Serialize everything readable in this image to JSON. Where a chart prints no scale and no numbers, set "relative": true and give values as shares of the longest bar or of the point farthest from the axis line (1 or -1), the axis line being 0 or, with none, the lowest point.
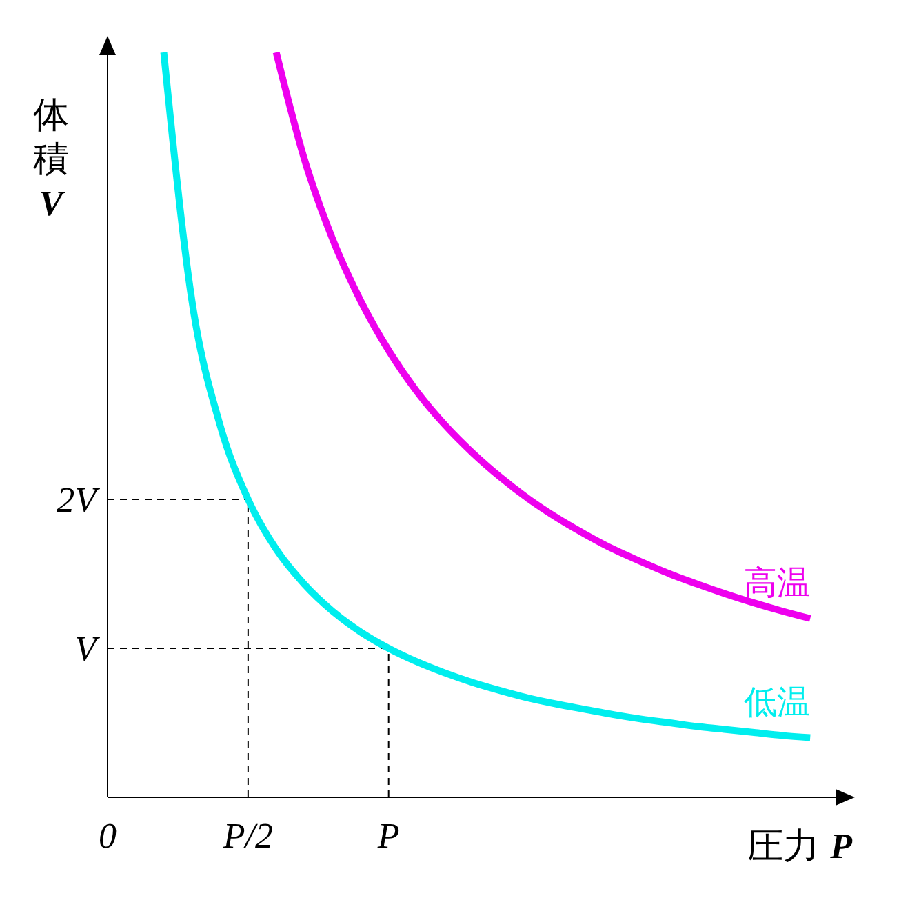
{
  "chart_data": {
    "type": "line",
    "xlabel": "圧力 P",
    "ylabel": "体積 V",
    "relative": true,
    "categories": [
      "0",
      null,
      null,
      null,
      null,
      "P/2",
      null,
      null,
      null,
      null,
      "P",
      null,
      null,
      null,
      null,
      null,
      null,
      null,
      null,
      null,
      null,
      null,
      null,
      null,
      null,
      null
    ],
    "grid": false,
    "legend": false,
    "marker": "none",
    "ref_lines": [
      {
        "axis": "y",
        "value": 0.4,
        "label": "2V",
        "color": "#000000",
        "line_style": "dashed"
      },
      {
        "axis": "y",
        "value": 0.2,
        "label": "V",
        "color": "#000000",
        "line_style": "dashed"
      },
      {
        "axis": "x",
        "value": "P/2",
        "color": "#000000",
        "line_style": "dashed"
      },
      {
        "axis": "x",
        "value": "P",
        "color": "#000000",
        "line_style": "dashed"
      }
    ],
    "series": [
      {
        "name": "高温",
        "color": "#ee00ee",
        "values": [
          null,
          null,
          null,
          null,
          null,
          null,
          1.0,
          0.857,
          0.75,
          0.667,
          0.6,
          0.545,
          0.5,
          0.462,
          0.429,
          0.4,
          0.375,
          0.353,
          0.333,
          0.316,
          0.3,
          0.286,
          0.273,
          0.261,
          0.25,
          0.24
        ]
      },
      {
        "name": "低温",
        "color": "#00eeee",
        "values": [
          null,
          null,
          1.0,
          0.667,
          0.5,
          0.4,
          0.333,
          0.286,
          0.25,
          0.222,
          0.2,
          0.182,
          0.167,
          0.154,
          0.143,
          0.133,
          0.125,
          0.118,
          0.111,
          0.105,
          0.1,
          0.095,
          0.091,
          0.087,
          0.083,
          0.08
        ]
      }
    ]
  }
}
